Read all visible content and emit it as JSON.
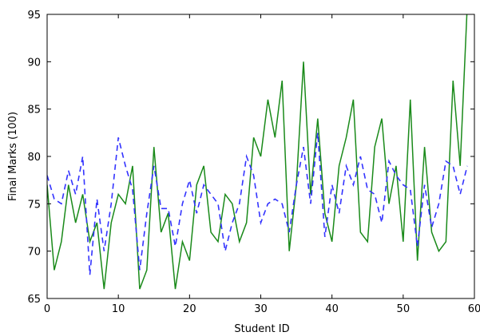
{
  "chart_data": {
    "type": "line",
    "title": "",
    "xlabel": "Student ID",
    "ylabel": "Final Marks (100)",
    "xlim": [
      0,
      60
    ],
    "ylim": [
      65,
      95
    ],
    "xticks": [
      0,
      10,
      20,
      30,
      40,
      50,
      60
    ],
    "yticks": [
      65,
      70,
      75,
      80,
      85,
      90,
      95
    ],
    "grid": false,
    "legend": false,
    "series": [
      {
        "style": "solid",
        "color": "#1a8a1a",
        "x": [
          0,
          1,
          2,
          3,
          4,
          5,
          6,
          7,
          8,
          9,
          10,
          11,
          12,
          13,
          14,
          15,
          16,
          17,
          18,
          19,
          20,
          21,
          22,
          23,
          24,
          25,
          26,
          27,
          28,
          29,
          30,
          31,
          32,
          33,
          34,
          35,
          36,
          37,
          38,
          39,
          40,
          41,
          42,
          43,
          44,
          45,
          46,
          47,
          48,
          49,
          50,
          51,
          52,
          53,
          54,
          55,
          56,
          57,
          58,
          59
        ],
        "values": [
          77,
          68,
          71,
          77,
          73,
          76,
          71,
          73,
          66,
          73,
          76,
          75,
          79,
          66,
          68,
          81,
          72,
          74,
          66,
          71,
          69,
          77,
          79,
          72,
          71,
          76,
          75,
          71,
          73,
          82,
          80,
          86,
          82,
          88,
          70,
          77,
          90,
          76,
          84,
          74,
          71,
          79,
          82,
          86,
          72,
          71,
          81,
          84,
          75,
          79,
          71,
          86,
          69,
          81,
          72,
          70,
          71,
          88,
          79,
          96
        ]
      },
      {
        "style": "dashed",
        "color": "#3333ff",
        "x": [
          0,
          1,
          2,
          3,
          4,
          5,
          6,
          7,
          8,
          9,
          10,
          11,
          12,
          13,
          14,
          15,
          16,
          17,
          18,
          19,
          20,
          21,
          22,
          23,
          24,
          25,
          26,
          27,
          28,
          29,
          30,
          31,
          32,
          33,
          34,
          35,
          36,
          37,
          38,
          39,
          40,
          41,
          42,
          43,
          44,
          45,
          46,
          47,
          48,
          49,
          50,
          51,
          52,
          53,
          54,
          55,
          56,
          57,
          58,
          59
        ],
        "values": [
          78,
          75.5,
          75,
          78.5,
          76,
          80,
          67.5,
          75.5,
          70,
          75,
          82,
          79,
          76.5,
          68,
          74,
          79,
          74.5,
          74.5,
          70.5,
          75,
          77.5,
          74,
          77,
          76,
          75,
          70,
          73,
          75,
          80,
          78,
          73,
          75,
          75.5,
          75,
          72,
          77,
          81,
          75,
          82.5,
          71.5,
          77,
          74,
          79,
          77,
          80,
          76.5,
          76,
          73,
          79.5,
          78,
          77,
          76.5,
          70.5,
          77,
          72.5,
          75,
          79.5,
          79,
          76,
          79
        ]
      }
    ]
  }
}
